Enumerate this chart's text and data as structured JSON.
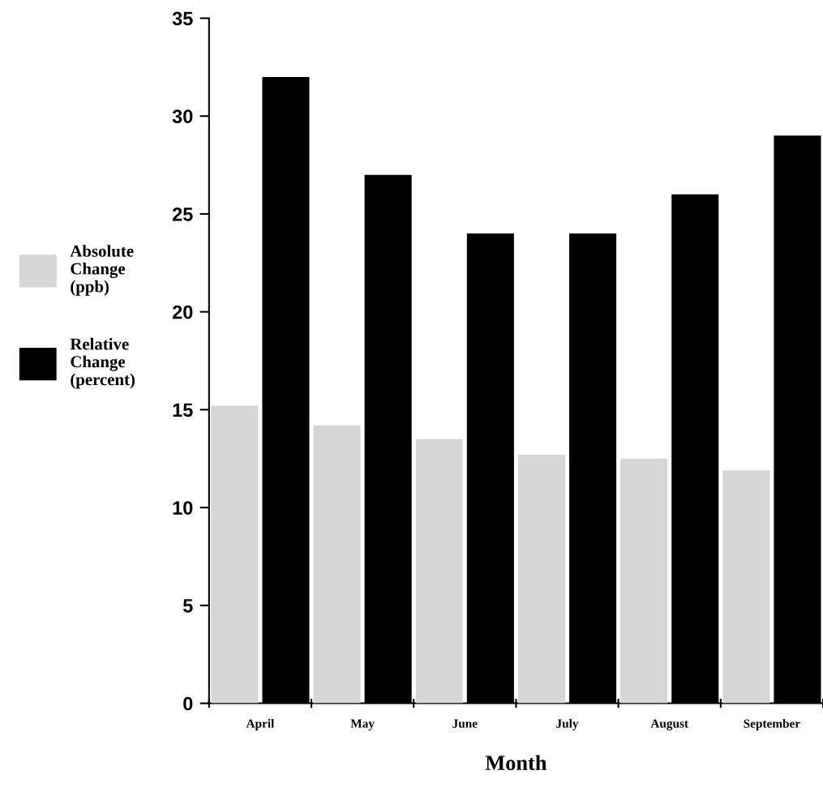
{
  "chart_data": {
    "type": "bar",
    "xlabel": "Month",
    "categories": [
      "April",
      "May",
      "June",
      "July",
      "August",
      "September"
    ],
    "series": [
      {
        "name": "Absolute Change (ppb)",
        "color": "#d6d6d6",
        "values": [
          15.2,
          14.2,
          13.5,
          12.7,
          12.5,
          11.9
        ]
      },
      {
        "name": "Relative Change (percent)",
        "color": "#000000",
        "values": [
          32,
          27,
          24,
          24,
          26,
          29
        ]
      }
    ],
    "ylim": [
      0,
      35
    ],
    "yticks": [
      0,
      5,
      10,
      15,
      20,
      25,
      30,
      35
    ],
    "grid": false,
    "legend": "left"
  }
}
